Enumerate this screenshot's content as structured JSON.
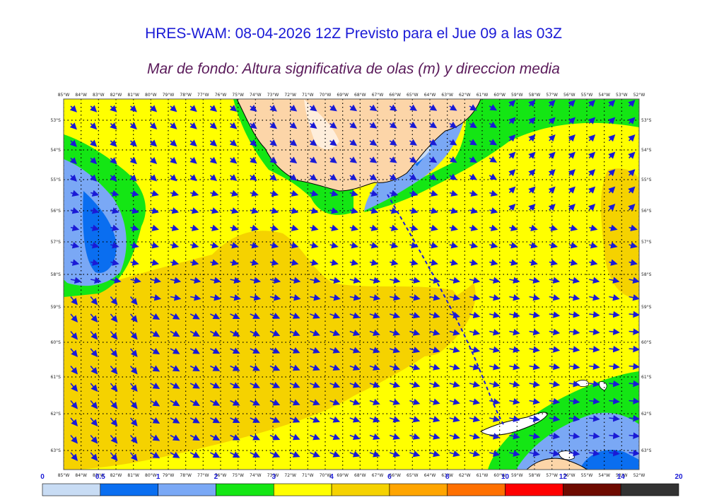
{
  "header": {
    "title": "HRES-WAM: 08-04-2026 12Z Previsto para el Jue 09 a las 03Z",
    "subtitle": "Mar de fondo: Altura significativa de olas (m) y direccion media"
  },
  "map": {
    "lon_labels": [
      "85°W",
      "84°W",
      "83°W",
      "82°W",
      "81°W",
      "80°W",
      "79°W",
      "78°W",
      "77°W",
      "76°W",
      "75°W",
      "74°W",
      "73°W",
      "72°W",
      "71°W",
      "70°W",
      "69°W",
      "68°W",
      "67°W",
      "66°W",
      "65°W",
      "64°W",
      "63°W",
      "62°W",
      "61°W",
      "60°W",
      "59°W",
      "58°W",
      "57°W",
      "56°W",
      "55°W",
      "54°W",
      "53°W",
      "52°W"
    ],
    "lat_labels": [
      "53°S",
      "54°S",
      "55°S",
      "56°S",
      "57°S",
      "58°S",
      "59°S",
      "60°S",
      "61°S",
      "62°S",
      "63°S"
    ],
    "colors": {
      "land": "#fcd5a8",
      "arrow": "#1a1ad6",
      "frame": "#555555"
    }
  },
  "colorbar": {
    "ticks": [
      "0",
      "0.5",
      "1",
      "2",
      "3",
      "4",
      "6",
      "8",
      "10",
      "12",
      "14",
      "20"
    ],
    "colors": [
      "#c8dcf4",
      "#0a6ef0",
      "#7aa8f5",
      "#14e614",
      "#ffff00",
      "#f5d200",
      "#ffa500",
      "#ff7000",
      "#ff0000",
      "#6e0a00",
      "#323232"
    ]
  }
}
